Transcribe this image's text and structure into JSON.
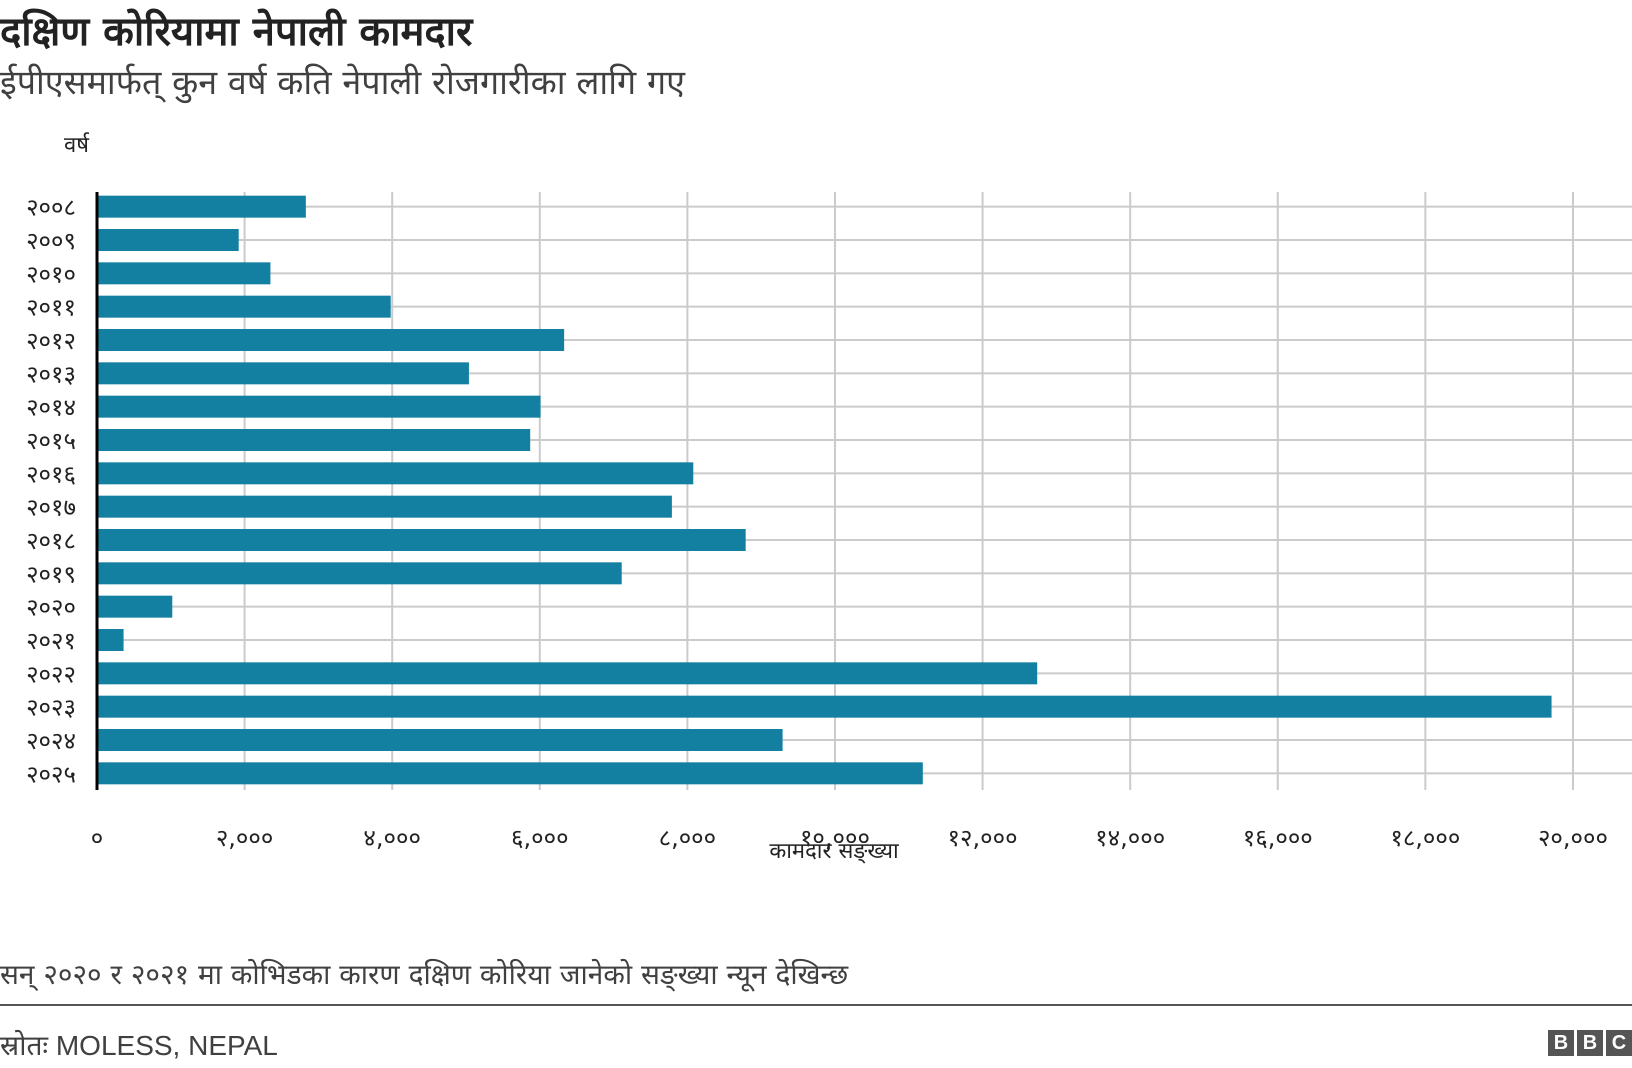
{
  "header": {
    "title": "दक्षिण कोरियामा नेपाली कामदार",
    "subtitle": "ईपीएसमार्फत् कुन वर्ष कति नेपाली रोजगारीका लागि गए"
  },
  "footer": {
    "note": "सन् २०२० र २०२१ मा कोभिडका कारण दक्षिण कोरिया जानेको सङ्ख्या न्यून देखिन्छ",
    "source": "स्रोतः MOLESS, NEPAL",
    "logo_letters": [
      "B",
      "B",
      "C"
    ]
  },
  "chart_data": {
    "type": "bar",
    "orientation": "horizontal",
    "categories": [
      "२००८",
      "२००९",
      "२०१०",
      "२०११",
      "२०१२",
      "२०१३",
      "२०१४",
      "२०१५",
      "२०१६",
      "२०१७",
      "२०१८",
      "२०१९",
      "२०२०",
      "२०२१",
      "२०२२",
      "२०२३",
      "२०२४",
      "२०२५"
    ],
    "values": [
      2830,
      1920,
      2350,
      3980,
      6330,
      5040,
      6010,
      5870,
      8080,
      7790,
      8790,
      7110,
      1020,
      360,
      12740,
      19710,
      9290,
      11190
    ],
    "x_ticks": [
      0,
      2000,
      4000,
      6000,
      8000,
      10000,
      12000,
      14000,
      16000,
      18000,
      20000
    ],
    "x_tick_labels": [
      "०",
      "२,०००",
      "४,०००",
      "६,०००",
      "८,०००",
      "१०,०००",
      "१२,०००",
      "१४,०००",
      "१६,०००",
      "१८,०००",
      "२०,०००"
    ],
    "xlabel": "कामदार सङ्ख्या",
    "ylabel": "वर्ष",
    "xlim": [
      0,
      20800
    ],
    "grid": true,
    "bar_color": "#1380A1",
    "grid_color": "#cbcbcb",
    "axis_color": "#000000"
  }
}
